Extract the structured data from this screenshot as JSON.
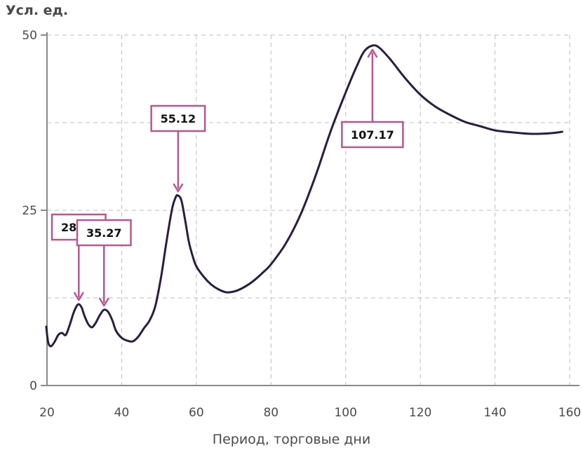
{
  "chart_data": {
    "type": "line",
    "title": "",
    "ylabel": "Усл. ед.",
    "xlabel": "Период, торговые дни",
    "xlim": [
      20,
      160
    ],
    "ylim": [
      0,
      50
    ],
    "x_ticks": [
      20,
      40,
      60,
      80,
      100,
      120,
      140,
      160
    ],
    "y_ticks": [
      0,
      25,
      50
    ],
    "y_gridlines": [
      12.5,
      25,
      37.5,
      50
    ],
    "grid": true,
    "grid_style": "dashed",
    "colors": {
      "line": "#2b1d3f",
      "annotation": "#b8568f",
      "grid": "#bdbdbd",
      "axis": "#8a8a8a"
    },
    "series": [
      {
        "values": [
          [
            19.8,
            8.4
          ],
          [
            20.3,
            6.2
          ],
          [
            21,
            5.6
          ],
          [
            22,
            6.2
          ],
          [
            23,
            7.2
          ],
          [
            24,
            7.5
          ],
          [
            25,
            7.2
          ],
          [
            26,
            8.5
          ],
          [
            27,
            10.2
          ],
          [
            27.8,
            11.2
          ],
          [
            28.5,
            11.6
          ],
          [
            29.3,
            11.1
          ],
          [
            30,
            10.0
          ],
          [
            31,
            8.8
          ],
          [
            32,
            8.3
          ],
          [
            33,
            8.9
          ],
          [
            34,
            9.9
          ],
          [
            35,
            10.7
          ],
          [
            35.7,
            10.8
          ],
          [
            36.5,
            10.4
          ],
          [
            37.5,
            9.3
          ],
          [
            38.5,
            7.8
          ],
          [
            40,
            6.8
          ],
          [
            41.5,
            6.4
          ],
          [
            43,
            6.3
          ],
          [
            44.5,
            7.0
          ],
          [
            46,
            8.2
          ],
          [
            47.5,
            9.3
          ],
          [
            49,
            11.3
          ],
          [
            50.5,
            15.3
          ],
          [
            52,
            20.5
          ],
          [
            53.5,
            25.2
          ],
          [
            54.5,
            26.9
          ],
          [
            55.1,
            27.1
          ],
          [
            56,
            26.4
          ],
          [
            57,
            23.6
          ],
          [
            58,
            20.5
          ],
          [
            59,
            18.5
          ],
          [
            60,
            17.0
          ],
          [
            62,
            15.5
          ],
          [
            64,
            14.4
          ],
          [
            66,
            13.7
          ],
          [
            68,
            13.3
          ],
          [
            70,
            13.4
          ],
          [
            72,
            13.8
          ],
          [
            75,
            14.8
          ],
          [
            78,
            16.2
          ],
          [
            80,
            17.3
          ],
          [
            84,
            20.3
          ],
          [
            88,
            24.5
          ],
          [
            92,
            30.0
          ],
          [
            96,
            36.3
          ],
          [
            100,
            41.8
          ],
          [
            103,
            45.6
          ],
          [
            105,
            47.7
          ],
          [
            107.2,
            48.5
          ],
          [
            109,
            48.2
          ],
          [
            112,
            46.5
          ],
          [
            116,
            43.8
          ],
          [
            120,
            41.5
          ],
          [
            124,
            39.8
          ],
          [
            128,
            38.6
          ],
          [
            132,
            37.6
          ],
          [
            136,
            37.0
          ],
          [
            140,
            36.4
          ],
          [
            145,
            36.1
          ],
          [
            150,
            35.9
          ],
          [
            155,
            36.0
          ],
          [
            158,
            36.2
          ]
        ]
      }
    ],
    "annotations": [
      {
        "label": "28.51",
        "x": 28.51,
        "y": 11.6,
        "box_above": true
      },
      {
        "label": "35.27",
        "x": 35.27,
        "y": 10.8,
        "box_above": true
      },
      {
        "label": "55.12",
        "x": 55.12,
        "y": 27.1,
        "box_above": true
      },
      {
        "label": "107.17",
        "x": 107.17,
        "y": 48.5,
        "box_above": false
      }
    ]
  }
}
